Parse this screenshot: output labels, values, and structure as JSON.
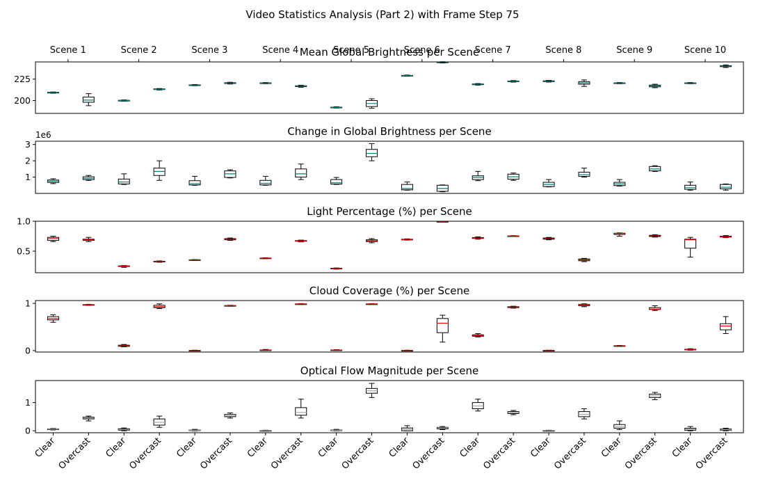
{
  "figure_title": "Video Statistics Analysis (Part 2) with Frame Step 75",
  "scenes": [
    "Scene 1",
    "Scene 2",
    "Scene 3",
    "Scene 4",
    "Scene 5",
    "Scene 6",
    "Scene 7",
    "Scene 8",
    "Scene 9",
    "Scene 10"
  ],
  "conditions": [
    "Clear",
    "Overcast"
  ],
  "chart_data": [
    {
      "type": "box",
      "title": "Mean Global Brightness per Scene",
      "ylim": [
        185,
        245
      ],
      "yticks": [
        200,
        225
      ],
      "ytick_labels": [
        "200",
        "225"
      ],
      "median_color": "#008080",
      "boxes": [
        [
          [
            208.5,
            209,
            209.3,
            209.6,
            210
          ],
          [
            194,
            198,
            200.5,
            204,
            208
          ]
        ],
        [
          [
            199.3,
            199.7,
            200,
            200.3,
            200.7
          ],
          [
            212.3,
            212.8,
            213.2,
            213.6,
            214
          ]
        ],
        [
          [
            217.3,
            217.7,
            218,
            218.3,
            218.7
          ],
          [
            219.3,
            219.8,
            220.3,
            220.8,
            221.3
          ]
        ],
        [
          [
            219.6,
            220,
            220.3,
            220.6,
            221
          ],
          [
            215.5,
            216.2,
            216.7,
            217.2,
            217.8
          ]
        ],
        [
          [
            191.3,
            191.7,
            192,
            192.3,
            192.7
          ],
          [
            191,
            193,
            196.5,
            200,
            202
          ]
        ],
        [
          [
            228.3,
            228.7,
            229,
            229.3,
            229.7
          ],
          [
            243.8,
            244.2,
            244.6,
            244.9,
            245.2
          ]
        ],
        [
          [
            218,
            218.5,
            218.9,
            219.3,
            219.8
          ],
          [
            221.5,
            222,
            222.4,
            222.8,
            223.3
          ]
        ],
        [
          [
            221.5,
            222,
            222.5,
            223,
            223.5
          ],
          [
            216.5,
            219,
            220.5,
            222,
            224
          ]
        ],
        [
          [
            219.6,
            220,
            220.3,
            220.6,
            221
          ],
          [
            215,
            216,
            217.2,
            218,
            219
          ]
        ],
        [
          [
            219.6,
            220,
            220.3,
            220.6,
            221
          ],
          [
            238.5,
            239.5,
            240,
            240.6,
            241.5
          ]
        ]
      ]
    },
    {
      "type": "box",
      "title": "Change in Global Brightness per Scene",
      "offset_label": "1e6",
      "ylim": [
        0.0,
        3.2
      ],
      "yticks": [
        1,
        2,
        3
      ],
      "ytick_labels": [
        "1",
        "2",
        "3"
      ],
      "median_color": "#008080",
      "boxes": [
        [
          [
            0.6,
            0.67,
            0.75,
            0.82,
            0.9
          ],
          [
            0.8,
            0.85,
            0.93,
            1.02,
            1.1
          ]
        ],
        [
          [
            0.55,
            0.58,
            0.7,
            0.88,
            1.2
          ],
          [
            0.8,
            1.1,
            1.35,
            1.55,
            2.0
          ]
        ],
        [
          [
            0.5,
            0.52,
            0.6,
            0.78,
            1.05
          ],
          [
            0.95,
            0.98,
            1.2,
            1.38,
            1.45
          ]
        ],
        [
          [
            0.5,
            0.52,
            0.62,
            0.8,
            1.05
          ],
          [
            0.85,
            1.0,
            1.2,
            1.5,
            1.8
          ]
        ],
        [
          [
            0.55,
            0.57,
            0.65,
            0.85,
            0.98
          ],
          [
            2.0,
            2.25,
            2.45,
            2.7,
            3.05
          ]
        ],
        [
          [
            0.2,
            0.22,
            0.3,
            0.55,
            0.7
          ],
          [
            0.1,
            0.13,
            0.3,
            0.5,
            0.52
          ]
        ],
        [
          [
            0.78,
            0.85,
            0.98,
            1.08,
            1.35
          ],
          [
            0.8,
            0.87,
            1.02,
            1.18,
            1.25
          ]
        ],
        [
          [
            0.4,
            0.42,
            0.55,
            0.68,
            0.85
          ],
          [
            1.0,
            1.05,
            1.15,
            1.3,
            1.55
          ]
        ],
        [
          [
            0.45,
            0.48,
            0.58,
            0.68,
            0.85
          ],
          [
            1.35,
            1.38,
            1.5,
            1.65,
            1.7
          ]
        ],
        [
          [
            0.2,
            0.25,
            0.35,
            0.5,
            0.7
          ],
          [
            0.2,
            0.28,
            0.38,
            0.55,
            0.58
          ]
        ]
      ]
    },
    {
      "type": "box",
      "title": "Light Percentage (%) per Scene",
      "ylim": [
        0.14,
        1.0
      ],
      "yticks": [
        0.5,
        1.0
      ],
      "ytick_labels": [
        "0.5",
        "1.0"
      ],
      "median_color": "#ff0000",
      "boxes": [
        [
          [
            0.66,
            0.68,
            0.71,
            0.73,
            0.75
          ],
          [
            0.66,
            0.68,
            0.69,
            0.7,
            0.73
          ]
        ],
        [
          [
            0.23,
            0.245,
            0.25,
            0.255,
            0.26
          ],
          [
            0.315,
            0.322,
            0.328,
            0.332,
            0.338
          ]
        ],
        [
          [
            0.345,
            0.35,
            0.353,
            0.357,
            0.36
          ],
          [
            0.68,
            0.69,
            0.7,
            0.71,
            0.72
          ]
        ],
        [
          [
            0.375,
            0.38,
            0.383,
            0.386,
            0.39
          ],
          [
            0.655,
            0.665,
            0.672,
            0.678,
            0.685
          ]
        ],
        [
          [
            0.2,
            0.205,
            0.21,
            0.215,
            0.22
          ],
          [
            0.64,
            0.66,
            0.675,
            0.69,
            0.71
          ]
        ],
        [
          [
            0.685,
            0.69,
            0.695,
            0.7,
            0.705
          ],
          [
            0.99,
            0.993,
            0.995,
            0.997,
            1.0
          ]
        ],
        [
          [
            0.7,
            0.712,
            0.72,
            0.728,
            0.74
          ],
          [
            0.745,
            0.75,
            0.753,
            0.756,
            0.76
          ]
        ],
        [
          [
            0.69,
            0.7,
            0.71,
            0.72,
            0.73
          ],
          [
            0.325,
            0.34,
            0.355,
            0.37,
            0.38
          ]
        ],
        [
          [
            0.75,
            0.78,
            0.795,
            0.8,
            0.805
          ],
          [
            0.735,
            0.745,
            0.755,
            0.765,
            0.775
          ]
        ],
        [
          [
            0.4,
            0.55,
            0.69,
            0.7,
            0.73
          ],
          [
            0.725,
            0.735,
            0.74,
            0.75,
            0.76
          ]
        ]
      ]
    },
    {
      "type": "box",
      "title": "Cloud Coverage (%) per Scene",
      "ylim": [
        -0.03,
        1.06
      ],
      "yticks": [
        0,
        1
      ],
      "ytick_labels": [
        "0",
        "1"
      ],
      "median_color": "#ff0000",
      "boxes": [
        [
          [
            0.6,
            0.65,
            0.68,
            0.72,
            0.76
          ],
          [
            0.96,
            0.965,
            0.97,
            0.975,
            0.98
          ]
        ],
        [
          [
            0.08,
            0.09,
            0.1,
            0.115,
            0.13
          ],
          [
            0.89,
            0.91,
            0.93,
            0.96,
            0.99
          ]
        ],
        [
          [
            -0.005,
            0.0,
            0.002,
            0.005,
            0.01
          ],
          [
            0.94,
            0.945,
            0.95,
            0.955,
            0.96
          ]
        ],
        [
          [
            0.0,
            0.005,
            0.01,
            0.015,
            0.025
          ],
          [
            0.975,
            0.98,
            0.985,
            0.99,
            0.995
          ]
        ],
        [
          [
            0.005,
            0.01,
            0.012,
            0.015,
            0.02
          ],
          [
            0.975,
            0.98,
            0.985,
            0.99,
            0.995
          ]
        ],
        [
          [
            -0.005,
            0.0,
            0.002,
            0.005,
            0.01
          ],
          [
            0.18,
            0.38,
            0.58,
            0.68,
            0.75
          ]
        ],
        [
          [
            0.29,
            0.305,
            0.32,
            0.335,
            0.36
          ],
          [
            0.9,
            0.91,
            0.92,
            0.93,
            0.94
          ]
        ],
        [
          [
            -0.005,
            0.0,
            0.002,
            0.005,
            0.01
          ],
          [
            0.93,
            0.95,
            0.97,
            0.98,
            0.99
          ]
        ],
        [
          [
            0.09,
            0.095,
            0.1,
            0.105,
            0.11
          ],
          [
            0.85,
            0.87,
            0.88,
            0.91,
            0.95
          ]
        ],
        [
          [
            0.01,
            0.02,
            0.025,
            0.03,
            0.04
          ],
          [
            0.36,
            0.44,
            0.52,
            0.57,
            0.72
          ]
        ]
      ]
    },
    {
      "type": "box",
      "title": "Optical Flow Magnitude per Scene",
      "ylim": [
        -0.07,
        1.78
      ],
      "yticks": [
        0,
        1
      ],
      "ytick_labels": [
        "0",
        "1"
      ],
      "median_color": "#aaaaaa",
      "boxes": [
        [
          [
            0.03,
            0.045,
            0.055,
            0.065,
            0.08
          ],
          [
            0.35,
            0.42,
            0.45,
            0.48,
            0.52
          ]
        ],
        [
          [
            0.0,
            0.02,
            0.04,
            0.07,
            0.1
          ],
          [
            0.12,
            0.2,
            0.3,
            0.42,
            0.52
          ]
        ],
        [
          [
            0.0,
            0.01,
            0.02,
            0.03,
            0.05
          ],
          [
            0.45,
            0.5,
            0.53,
            0.58,
            0.63
          ]
        ],
        [
          [
            -0.01,
            0.0,
            0.005,
            0.01,
            0.02
          ],
          [
            0.45,
            0.55,
            0.65,
            0.82,
            1.12
          ]
        ],
        [
          [
            0.0,
            0.01,
            0.02,
            0.03,
            0.05
          ],
          [
            1.18,
            1.33,
            1.42,
            1.5,
            1.68
          ]
        ],
        [
          [
            0.0,
            0.0,
            0.05,
            0.1,
            0.18
          ],
          [
            0.04,
            0.07,
            0.1,
            0.12,
            0.15
          ]
        ],
        [
          [
            0.7,
            0.78,
            0.88,
            1.0,
            1.12
          ],
          [
            0.57,
            0.61,
            0.64,
            0.68,
            0.72
          ]
        ],
        [
          [
            -0.01,
            0.0,
            0.005,
            0.01,
            0.02
          ],
          [
            0.42,
            0.5,
            0.58,
            0.68,
            0.78
          ]
        ],
        [
          [
            0.04,
            0.09,
            0.14,
            0.22,
            0.35
          ],
          [
            1.1,
            1.18,
            1.24,
            1.3,
            1.36
          ]
        ],
        [
          [
            0.0,
            0.02,
            0.05,
            0.09,
            0.15
          ],
          [
            0.0,
            0.02,
            0.04,
            0.06,
            0.09
          ]
        ]
      ]
    }
  ]
}
